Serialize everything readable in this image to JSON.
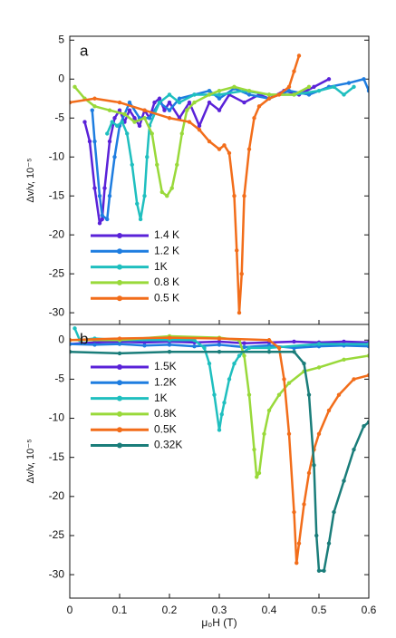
{
  "chart_data": [
    {
      "type": "line",
      "panel_label": "a",
      "y_label": "Δv/v, 10⁻⁵",
      "xlim": [
        0,
        0.6
      ],
      "xticks": [
        0,
        0.1,
        0.2,
        0.3,
        0.4,
        0.5,
        0.6
      ],
      "ylim": [
        -31.5,
        5.5
      ],
      "yticks": [
        -30,
        -25,
        -20,
        -15,
        -10,
        -5,
        0,
        5
      ],
      "series": [
        {
          "name": "1.4 K",
          "color": "#5a22d8",
          "x": [
            0.03,
            0.04,
            0.05,
            0.06,
            0.065,
            0.07,
            0.08,
            0.09,
            0.1,
            0.11,
            0.12,
            0.13,
            0.14,
            0.15,
            0.16,
            0.17,
            0.18,
            0.19,
            0.2,
            0.22,
            0.24,
            0.26,
            0.28,
            0.3,
            0.32,
            0.35,
            0.38,
            0.4,
            0.43,
            0.46,
            0.49,
            0.52
          ],
          "values": [
            -5.5,
            -8,
            -14,
            -18.5,
            -18,
            -14,
            -8,
            -5,
            -4,
            -5.5,
            -4,
            -5,
            -6,
            -4,
            -5,
            -3,
            -2.5,
            -4,
            -3,
            -5,
            -3,
            -6,
            -3,
            -4,
            -2,
            -3,
            -2,
            -2.5,
            -1.5,
            -2,
            -1,
            0
          ]
        },
        {
          "name": "1.2 K",
          "color": "#1e7de0",
          "x": [
            0.045,
            0.05,
            0.06,
            0.065,
            0.075,
            0.08,
            0.09,
            0.1,
            0.12,
            0.14,
            0.16,
            0.18,
            0.2,
            0.22,
            0.25,
            0.28,
            0.3,
            0.33,
            0.36,
            0.4,
            0.44,
            0.48,
            0.52,
            0.56,
            0.59,
            0.6
          ],
          "values": [
            -4,
            -8,
            -15,
            -17.5,
            -18,
            -15,
            -10,
            -6,
            -3,
            -5,
            -5,
            -3,
            -4,
            -2.5,
            -2,
            -1.5,
            -2.5,
            -1.2,
            -2,
            -2.5,
            -1.5,
            -2,
            -1,
            -0.5,
            0,
            -1.5
          ]
        },
        {
          "name": "1K",
          "color": "#1fbfbf",
          "x": [
            0.075,
            0.085,
            0.095,
            0.105,
            0.115,
            0.125,
            0.135,
            0.142,
            0.15,
            0.155,
            0.16,
            0.18,
            0.2,
            0.22,
            0.25,
            0.3,
            0.35,
            0.4,
            0.45,
            0.5,
            0.53,
            0.55,
            0.57
          ],
          "values": [
            -7,
            -5.5,
            -6,
            -5.5,
            -7,
            -11,
            -16,
            -18,
            -15,
            -10,
            -6,
            -3,
            -2,
            -3,
            -2,
            -2,
            -1.5,
            -2,
            -2,
            -1.5,
            -1,
            -2,
            -1
          ]
        },
        {
          "name": "0.8 K",
          "color": "#99d93a",
          "x": [
            0.01,
            0.03,
            0.05,
            0.08,
            0.11,
            0.13,
            0.15,
            0.165,
            0.175,
            0.185,
            0.195,
            0.205,
            0.215,
            0.225,
            0.235,
            0.25,
            0.28,
            0.3,
            0.33,
            0.36,
            0.4,
            0.45,
            0.48
          ],
          "values": [
            -1,
            -2.5,
            -3.5,
            -4,
            -4.5,
            -5.5,
            -5,
            -7,
            -11,
            -14.5,
            -15,
            -14,
            -11,
            -7,
            -4,
            -3,
            -2,
            -1.5,
            -1,
            -1.5,
            -2,
            -2,
            -1
          ]
        },
        {
          "name": "0.5 K",
          "color": "#f26d1a",
          "x": [
            0,
            0.05,
            0.1,
            0.15,
            0.2,
            0.24,
            0.26,
            0.28,
            0.3,
            0.31,
            0.32,
            0.33,
            0.335,
            0.34,
            0.345,
            0.35,
            0.36,
            0.37,
            0.38,
            0.4,
            0.42,
            0.44,
            0.45,
            0.46
          ],
          "values": [
            -3,
            -2.5,
            -3,
            -4,
            -5,
            -5.5,
            -6.5,
            -8,
            -9,
            -8.5,
            -9.5,
            -15,
            -22,
            -30,
            -25,
            -15,
            -9,
            -5,
            -3.5,
            -2.5,
            -2,
            -1,
            1,
            3
          ]
        }
      ]
    },
    {
      "type": "line",
      "panel_label": "b",
      "y_label": "Δv/v, 10⁻⁵",
      "x_label": "μ₀H (T)",
      "xlim": [
        0,
        0.6
      ],
      "xticks": [
        0,
        0.1,
        0.2,
        0.3,
        0.4,
        0.5,
        0.6
      ],
      "ylim": [
        -33,
        2
      ],
      "yticks": [
        -30,
        -25,
        -20,
        -15,
        -10,
        -5,
        0
      ],
      "series": [
        {
          "name": "1.5K",
          "color": "#5a22d8",
          "x": [
            0,
            0.05,
            0.1,
            0.15,
            0.2,
            0.25,
            0.3,
            0.35,
            0.4,
            0.45,
            0.5,
            0.55,
            0.6
          ],
          "values": [
            -0.5,
            -0.3,
            -0.2,
            -0.3,
            -0.2,
            -0.3,
            -0.2,
            -0.4,
            -0.3,
            -0.2,
            -0.3,
            -0.2,
            -0.3
          ]
        },
        {
          "name": "1.2K",
          "color": "#1e7de0",
          "x": [
            0,
            0.05,
            0.1,
            0.15,
            0.2,
            0.25,
            0.3,
            0.35,
            0.4,
            0.45,
            0.5,
            0.55,
            0.6
          ],
          "values": [
            -0.5,
            -0.6,
            -0.5,
            -0.7,
            -0.6,
            -0.8,
            -0.6,
            -0.9,
            -0.7,
            -1,
            -0.8,
            -0.7,
            -0.8
          ]
        },
        {
          "name": "1K",
          "color": "#1fbfbf",
          "x": [
            0.01,
            0.02,
            0.05,
            0.1,
            0.2,
            0.25,
            0.27,
            0.28,
            0.29,
            0.3,
            0.305,
            0.31,
            0.32,
            0.33,
            0.34,
            0.36,
            0.4,
            0.5,
            0.6
          ],
          "values": [
            1.5,
            0,
            0.2,
            0,
            0,
            0,
            -1,
            -3,
            -7,
            -11.5,
            -9.5,
            -8,
            -5,
            -3,
            -2,
            -1,
            -1,
            -0.5,
            -0.5
          ]
        },
        {
          "name": "0.8K",
          "color": "#99d93a",
          "x": [
            0,
            0.1,
            0.2,
            0.3,
            0.34,
            0.35,
            0.36,
            0.37,
            0.375,
            0.38,
            0.39,
            0.4,
            0.42,
            0.44,
            0.47,
            0.5,
            0.55,
            0.6
          ],
          "values": [
            0,
            0,
            0.5,
            0.3,
            0,
            -2,
            -7,
            -14,
            -17.5,
            -17,
            -12,
            -9,
            -7,
            -5.5,
            -4,
            -3.5,
            -2.5,
            -2
          ]
        },
        {
          "name": "0.5K",
          "color": "#f26d1a",
          "x": [
            0,
            0.1,
            0.2,
            0.3,
            0.4,
            0.42,
            0.43,
            0.44,
            0.45,
            0.455,
            0.46,
            0.47,
            0.48,
            0.49,
            0.5,
            0.52,
            0.54,
            0.57,
            0.6
          ],
          "values": [
            0,
            0.2,
            0.3,
            0.2,
            0,
            -1,
            -5,
            -12,
            -22,
            -28.5,
            -26,
            -21,
            -17,
            -14,
            -12,
            -9,
            -7,
            -5,
            -4.5
          ]
        },
        {
          "name": "0.32K",
          "color": "#1a7d7a",
          "x": [
            0,
            0.1,
            0.2,
            0.3,
            0.4,
            0.45,
            0.47,
            0.48,
            0.49,
            0.495,
            0.5,
            0.51,
            0.52,
            0.53,
            0.55,
            0.57,
            0.59,
            0.6
          ],
          "values": [
            -1.5,
            -1.7,
            -1.5,
            -1.5,
            -1.5,
            -1.5,
            -3,
            -7,
            -16,
            -25,
            -29.5,
            -29.5,
            -26,
            -22,
            -18,
            -14,
            -11,
            -10.5
          ]
        }
      ]
    }
  ]
}
